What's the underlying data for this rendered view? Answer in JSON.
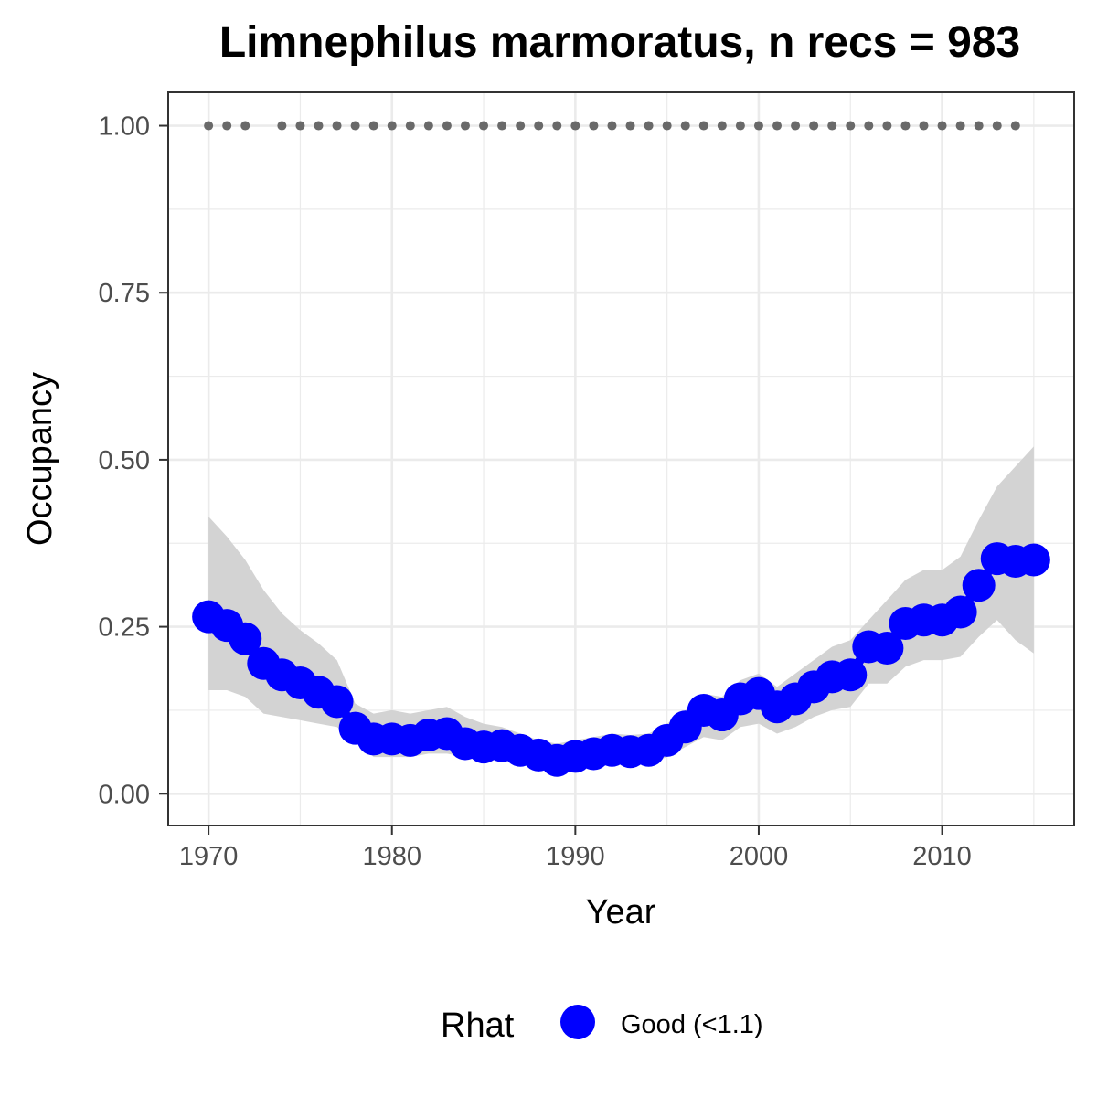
{
  "chart_data": {
    "type": "line",
    "title": "Limnephilus marmoratus, n recs = 983",
    "xlabel": "Year",
    "ylabel": "Occupancy",
    "xlim": [
      1967.8,
      1017.2
    ],
    "ylim": [
      -0.0475,
      1.05
    ],
    "x_ticks": [
      1970,
      1980,
      1990,
      2000,
      2010
    ],
    "y_ticks": [
      0.0,
      0.25,
      0.5,
      0.75,
      1.0
    ],
    "x_tick_labels": [
      "1970",
      "1980",
      "1990",
      "2000",
      "2010"
    ],
    "y_tick_labels": [
      "0.00",
      "0.25",
      "0.50",
      "0.75",
      "1.00"
    ],
    "grid": true,
    "legend_position": "bottom",
    "legend": {
      "title": "Rhat",
      "entries": [
        {
          "label": "Good (<1.1)",
          "color": "#0000ff"
        }
      ]
    },
    "series": [
      {
        "name": "Good (<1.1)",
        "color": "#0000ff",
        "x": [
          1970,
          1971,
          1972,
          1973,
          1974,
          1975,
          1976,
          1977,
          1978,
          1979,
          1980,
          1981,
          1982,
          1983,
          1984,
          1985,
          1986,
          1987,
          1988,
          1989,
          1990,
          1991,
          1992,
          1993,
          1994,
          1995,
          1996,
          1997,
          1998,
          1999,
          2000,
          2001,
          2002,
          2003,
          2004,
          2005,
          2006,
          2007,
          2008,
          2009,
          2010,
          2011,
          2012,
          2013,
          2014,
          2015
        ],
        "y": [
          0.265,
          0.252,
          0.232,
          0.195,
          0.178,
          0.166,
          0.152,
          0.138,
          0.098,
          0.082,
          0.082,
          0.08,
          0.088,
          0.09,
          0.075,
          0.07,
          0.072,
          0.065,
          0.058,
          0.05,
          0.056,
          0.06,
          0.065,
          0.063,
          0.065,
          0.08,
          0.1,
          0.125,
          0.118,
          0.142,
          0.15,
          0.13,
          0.142,
          0.16,
          0.175,
          0.178,
          0.22,
          0.218,
          0.255,
          0.26,
          0.26,
          0.272,
          0.312,
          0.352,
          0.348,
          0.35
        ]
      }
    ],
    "ribbon": {
      "color": "#d3d3d3",
      "x": [
        1970,
        1971,
        1972,
        1973,
        1974,
        1975,
        1976,
        1977,
        1978,
        1979,
        1980,
        1981,
        1982,
        1983,
        1984,
        1985,
        1986,
        1987,
        1988,
        1989,
        1990,
        1991,
        1992,
        1993,
        1994,
        1995,
        1996,
        1997,
        1998,
        1999,
        2000,
        2001,
        2002,
        2003,
        2004,
        2005,
        2006,
        2007,
        2008,
        2009,
        2010,
        2011,
        2012,
        2013,
        2014,
        2015
      ],
      "upper": [
        0.415,
        0.385,
        0.35,
        0.305,
        0.27,
        0.245,
        0.225,
        0.2,
        0.135,
        0.12,
        0.125,
        0.12,
        0.125,
        0.13,
        0.115,
        0.105,
        0.1,
        0.09,
        0.08,
        0.075,
        0.08,
        0.085,
        0.09,
        0.088,
        0.09,
        0.105,
        0.125,
        0.15,
        0.145,
        0.17,
        0.18,
        0.16,
        0.18,
        0.2,
        0.22,
        0.23,
        0.26,
        0.29,
        0.32,
        0.335,
        0.335,
        0.355,
        0.41,
        0.46,
        0.49,
        0.52
      ],
      "lower": [
        0.155,
        0.155,
        0.145,
        0.12,
        0.115,
        0.11,
        0.105,
        0.1,
        0.08,
        0.055,
        0.055,
        0.055,
        0.06,
        0.06,
        0.055,
        0.05,
        0.05,
        0.045,
        0.04,
        0.035,
        0.04,
        0.042,
        0.045,
        0.043,
        0.045,
        0.055,
        0.07,
        0.085,
        0.08,
        0.1,
        0.105,
        0.09,
        0.1,
        0.115,
        0.125,
        0.13,
        0.165,
        0.165,
        0.19,
        0.2,
        0.2,
        0.205,
        0.235,
        0.26,
        0.23,
        0.21
      ]
    },
    "top_points": {
      "color": "#696969",
      "y": 1.0,
      "x": [
        1970,
        1971,
        1972,
        1974,
        1975,
        1976,
        1977,
        1978,
        1979,
        1980,
        1981,
        1982,
        1983,
        1984,
        1985,
        1986,
        1987,
        1988,
        1989,
        1990,
        1991,
        1992,
        1993,
        1994,
        1995,
        1996,
        1997,
        1998,
        1999,
        2000,
        2001,
        2002,
        2003,
        2004,
        2005,
        2006,
        2007,
        2008,
        2009,
        2010,
        2011,
        2012,
        2013,
        2014
      ]
    }
  }
}
